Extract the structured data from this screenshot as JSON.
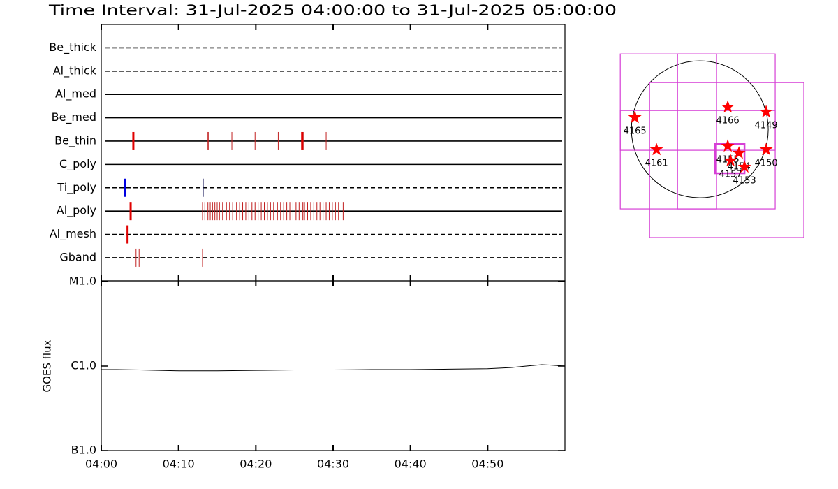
{
  "chart_data": [
    {
      "type": "timeline",
      "title": "Time Interval: 31-Jul-2025 04:00:00 to 31-Jul-2025 05:00:00",
      "xlim": [
        0,
        60
      ],
      "rows": [
        {
          "name": "Be_thick",
          "line": "dashed",
          "events": []
        },
        {
          "name": "Al_thick",
          "line": "dashed",
          "events": []
        },
        {
          "name": "Al_med",
          "line": "solid",
          "events": []
        },
        {
          "name": "Be_med",
          "line": "solid",
          "events": []
        },
        {
          "name": "Be_thin",
          "line": "solid",
          "events": [
            {
              "t": 4.15,
              "color": "#e00000",
              "thick": true
            },
            {
              "t": 13.8,
              "color": "#c02020",
              "thick": false
            },
            {
              "t": 13.9,
              "color": "#c02020",
              "thick": false
            },
            {
              "t": 16.9,
              "color": "#c02020",
              "thick": false
            },
            {
              "t": 19.9,
              "color": "#c02020",
              "thick": false
            },
            {
              "t": 22.9,
              "color": "#c02020",
              "thick": false
            },
            {
              "t": 26.0,
              "color": "#e00000",
              "thick": true
            },
            {
              "t": 26.2,
              "color": "#c02020",
              "thick": false
            },
            {
              "t": 29.1,
              "color": "#c02020",
              "thick": false
            }
          ]
        },
        {
          "name": "C_poly",
          "line": "solid",
          "events": []
        },
        {
          "name": "Ti_poly",
          "line": "dashed",
          "events": [
            {
              "t": 3.07,
              "color": "#0000e0",
              "thick": true
            },
            {
              "t": 13.2,
              "color": "#202060",
              "thick": false
            }
          ]
        },
        {
          "name": "Al_poly",
          "line": "solid",
          "events": [
            {
              "t": 3.8,
              "color": "#e00000",
              "thick": true
            },
            {
              "t": 13.1,
              "color": "#c02020",
              "thick": false
            },
            {
              "t": 13.4,
              "color": "#c02020",
              "thick": false
            },
            {
              "t": 13.8,
              "color": "#c02020",
              "thick": false
            },
            {
              "t": 14.1,
              "color": "#c02020",
              "thick": false
            },
            {
              "t": 14.4,
              "color": "#c02020",
              "thick": false
            },
            {
              "t": 14.7,
              "color": "#c02020",
              "thick": false
            },
            {
              "t": 15.0,
              "color": "#c02020",
              "thick": false
            },
            {
              "t": 15.3,
              "color": "#c02020",
              "thick": false
            },
            {
              "t": 15.7,
              "color": "#c02020",
              "thick": false
            },
            {
              "t": 16.2,
              "color": "#c02020",
              "thick": false
            },
            {
              "t": 16.6,
              "color": "#c02020",
              "thick": false
            },
            {
              "t": 17.0,
              "color": "#c02020",
              "thick": false
            },
            {
              "t": 17.5,
              "color": "#c02020",
              "thick": false
            },
            {
              "t": 17.9,
              "color": "#c02020",
              "thick": false
            },
            {
              "t": 18.3,
              "color": "#c02020",
              "thick": false
            },
            {
              "t": 18.7,
              "color": "#c02020",
              "thick": false
            },
            {
              "t": 19.1,
              "color": "#c02020",
              "thick": false
            },
            {
              "t": 19.5,
              "color": "#c02020",
              "thick": false
            },
            {
              "t": 19.9,
              "color": "#c02020",
              "thick": false
            },
            {
              "t": 20.3,
              "color": "#c02020",
              "thick": false
            },
            {
              "t": 20.7,
              "color": "#c02020",
              "thick": false
            },
            {
              "t": 21.1,
              "color": "#c02020",
              "thick": false
            },
            {
              "t": 21.5,
              "color": "#c02020",
              "thick": false
            },
            {
              "t": 21.9,
              "color": "#c02020",
              "thick": false
            },
            {
              "t": 22.3,
              "color": "#c02020",
              "thick": false
            },
            {
              "t": 22.8,
              "color": "#c02020",
              "thick": false
            },
            {
              "t": 23.2,
              "color": "#c02020",
              "thick": false
            },
            {
              "t": 23.6,
              "color": "#c02020",
              "thick": false
            },
            {
              "t": 24.0,
              "color": "#c02020",
              "thick": false
            },
            {
              "t": 24.4,
              "color": "#c02020",
              "thick": false
            },
            {
              "t": 24.8,
              "color": "#c02020",
              "thick": false
            },
            {
              "t": 25.2,
              "color": "#c02020",
              "thick": false
            },
            {
              "t": 25.6,
              "color": "#c02020",
              "thick": false
            },
            {
              "t": 26.0,
              "color": "#c02020",
              "thick": false
            },
            {
              "t": 26.1,
              "color": "#c02020",
              "thick": false
            },
            {
              "t": 26.3,
              "color": "#c02020",
              "thick": false
            },
            {
              "t": 26.7,
              "color": "#c02020",
              "thick": false
            },
            {
              "t": 27.1,
              "color": "#c02020",
              "thick": false
            },
            {
              "t": 27.5,
              "color": "#c02020",
              "thick": false
            },
            {
              "t": 27.9,
              "color": "#c02020",
              "thick": false
            },
            {
              "t": 28.3,
              "color": "#c02020",
              "thick": false
            },
            {
              "t": 28.7,
              "color": "#c02020",
              "thick": false
            },
            {
              "t": 29.1,
              "color": "#c02020",
              "thick": false
            },
            {
              "t": 29.5,
              "color": "#c02020",
              "thick": false
            },
            {
              "t": 29.9,
              "color": "#c02020",
              "thick": false
            },
            {
              "t": 30.3,
              "color": "#c02020",
              "thick": false
            },
            {
              "t": 30.7,
              "color": "#c02020",
              "thick": false
            },
            {
              "t": 31.3,
              "color": "#c02020",
              "thick": false
            }
          ]
        },
        {
          "name": "Al_mesh",
          "line": "dashed",
          "events": [
            {
              "t": 3.4,
              "color": "#e00000",
              "thick": true
            }
          ]
        },
        {
          "name": "Gband",
          "line": "dashed",
          "events": [
            {
              "t": 4.5,
              "color": "#c02020",
              "thick": false
            },
            {
              "t": 4.9,
              "color": "#c02020",
              "thick": false
            },
            {
              "t": 13.1,
              "color": "#c02020",
              "thick": false
            }
          ]
        }
      ]
    },
    {
      "type": "line",
      "ylabel": "GOES flux",
      "log_scale": true,
      "color": "#000000",
      "xlim": [
        0,
        60
      ],
      "xticks": [
        {
          "value": 0,
          "label": "04:00"
        },
        {
          "value": 10,
          "label": "04:10"
        },
        {
          "value": 20,
          "label": "04:20"
        },
        {
          "value": 30,
          "label": "04:30"
        },
        {
          "value": 40,
          "label": "04:40"
        },
        {
          "value": 50,
          "label": "04:50"
        }
      ],
      "ylim": [
        1e-07,
        1e-05
      ],
      "yticks": [
        {
          "value": 1e-07,
          "label": "B1.0"
        },
        {
          "value": 1e-06,
          "label": "C1.0"
        },
        {
          "value": 1e-05,
          "label": "M1.0"
        }
      ],
      "x": [
        0,
        2,
        5,
        10,
        15,
        20,
        25,
        30,
        35,
        40,
        45,
        50,
        53,
        55,
        57,
        58,
        60
      ],
      "values": [
        9.1e-07,
        9.1e-07,
        9e-07,
        8.8e-07,
        8.8e-07,
        8.9e-07,
        9e-07,
        9e-07,
        9.1e-07,
        9.1e-07,
        9.2e-07,
        9.3e-07,
        9.6e-07,
        1e-06,
        1.04e-06,
        1.03e-06,
        1e-06
      ]
    },
    {
      "type": "map",
      "disk_radius": 945,
      "xlim": [
        -1400,
        1600
      ],
      "ylim": [
        -1600,
        1400
      ],
      "box_color": "#d63fd6",
      "star_color": "#ff0000",
      "boxes": [
        {
          "x": [
            -1099,
            1041
          ],
          "y": [
            -1099,
            1041
          ],
          "thick": false
        },
        {
          "x": [
            -694,
            1436
          ],
          "y": [
            -1494,
            646
          ],
          "thick": false
        },
        {
          "x": [
            -308,
            231
          ],
          "y": [
            -1099,
            1041
          ],
          "thick": false
        },
        {
          "x": [
            -1099,
            1041
          ],
          "y": [
            -289,
            260
          ],
          "thick": false
        },
        {
          "x": [
            212,
            617
          ],
          "y": [
            -607,
            -202
          ],
          "thick": true
        }
      ],
      "regions": [
        {
          "label": "4165",
          "x": -897,
          "y": 164
        },
        {
          "label": "4161",
          "x": -598,
          "y": -280
        },
        {
          "label": "4166",
          "x": 386,
          "y": 308
        },
        {
          "label": "4149",
          "x": 916,
          "y": 241
        },
        {
          "label": "4150",
          "x": 916,
          "y": -280
        },
        {
          "label": "4155",
          "x": 386,
          "y": -231
        },
        {
          "label": "4157",
          "x": 424,
          "y": -434
        },
        {
          "label": "4154",
          "x": 540,
          "y": -328
        },
        {
          "label": "4153",
          "x": 617,
          "y": -521
        }
      ]
    }
  ]
}
